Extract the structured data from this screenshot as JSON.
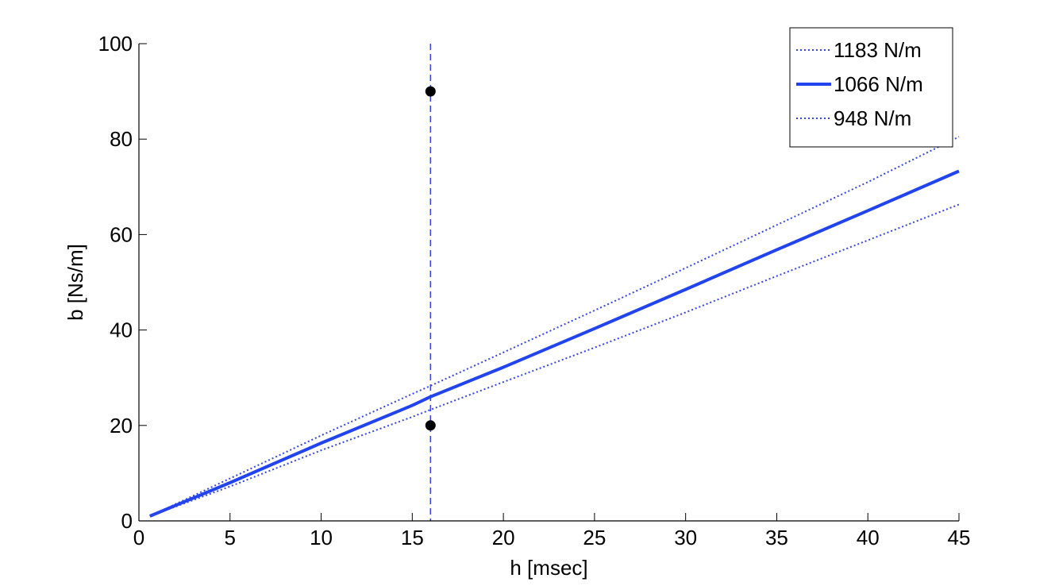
{
  "chart_data": {
    "type": "line",
    "xlabel": "h [msec]",
    "ylabel": "b [Ns/m]",
    "xlim": [
      0,
      45
    ],
    "ylim": [
      0,
      100
    ],
    "xticks": [
      0,
      5,
      10,
      15,
      20,
      25,
      30,
      35,
      40,
      45
    ],
    "yticks": [
      0,
      20,
      40,
      60,
      80,
      100
    ],
    "grid": false,
    "legend_position": "top-right",
    "series": [
      {
        "name": "1183 N/m",
        "style": "dotted",
        "color": "#3344ee",
        "x": [
          0.6,
          5,
          10,
          15,
          16,
          20,
          25,
          30,
          35,
          40,
          45
        ],
        "y": [
          1.0,
          8.9,
          17.9,
          26.6,
          28.3,
          35.3,
          44.1,
          53.0,
          62.0,
          71.0,
          80.5
        ]
      },
      {
        "name": "1066 N/m",
        "style": "solid",
        "color": "#2244ee",
        "x": [
          0.6,
          5,
          10,
          15,
          16,
          20,
          25,
          30,
          35,
          40,
          45
        ],
        "y": [
          1.0,
          8.0,
          16.3,
          24.2,
          26.0,
          32.2,
          40.3,
          48.5,
          56.8,
          65.0,
          73.3
        ]
      },
      {
        "name": "948 N/m",
        "style": "dotted",
        "color": "#3344ee",
        "x": [
          0.6,
          5,
          10,
          15,
          16,
          20,
          25,
          30,
          35,
          40,
          45
        ],
        "y": [
          1.0,
          7.2,
          14.8,
          21.8,
          23.3,
          29.1,
          36.3,
          43.7,
          51.3,
          58.8,
          66.3
        ]
      }
    ],
    "vertical_line": {
      "x": 16,
      "style": "dashed",
      "color": "#3344ee"
    },
    "points": [
      {
        "x": 16,
        "y": 90
      },
      {
        "x": 16,
        "y": 20
      }
    ]
  }
}
